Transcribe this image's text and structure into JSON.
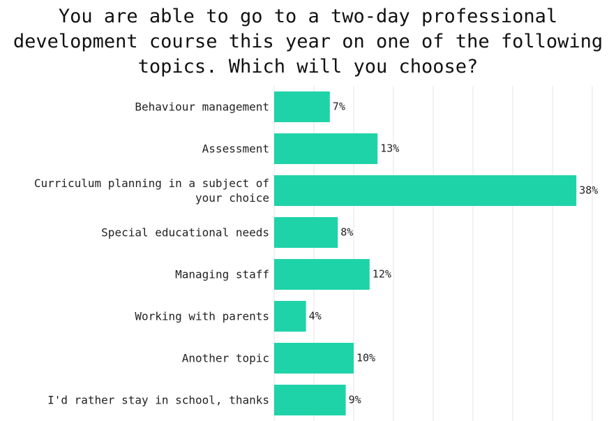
{
  "chart_data": {
    "type": "barh",
    "title": "You are able to go to a two-day professional development course this year on one of the following topics. Which will you choose?",
    "categories": [
      "Behaviour management",
      "Assessment",
      "Curriculum planning in a subject of your choice",
      "Special educational needs",
      "Managing staff",
      "Working with parents",
      "Another topic",
      "I'd rather stay in school, thanks"
    ],
    "values": [
      7,
      13,
      38,
      8,
      12,
      4,
      10,
      9
    ],
    "value_labels": [
      "7%",
      "13%",
      "38%",
      "8%",
      "12%",
      "4%",
      "10%",
      "9%"
    ],
    "color": "#1fd3a8",
    "xlim": [
      0,
      40
    ],
    "xticks": [
      0,
      5,
      10,
      15,
      20,
      25,
      30,
      35,
      40
    ],
    "grid": true
  }
}
